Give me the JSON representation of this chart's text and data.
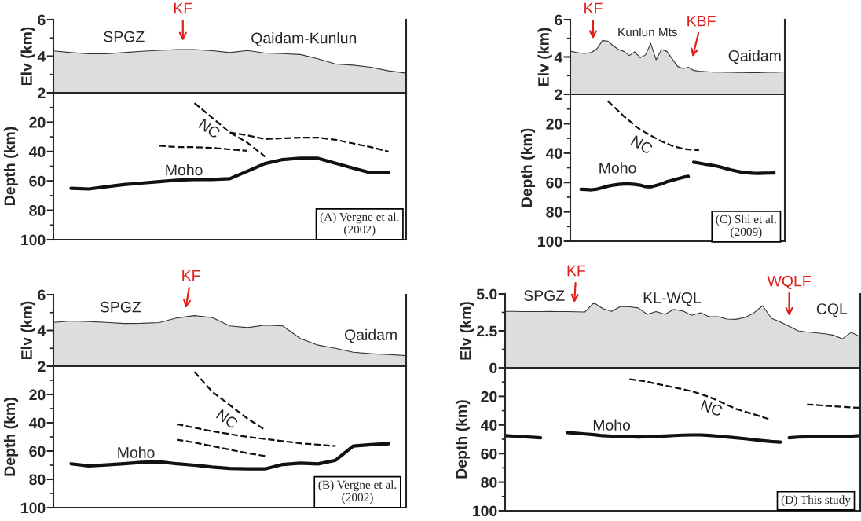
{
  "chart_data": [
    {
      "type": "area",
      "ylabel": "Elv (km)",
      "tick_labels": "y",
      "ylim": [
        2,
        6
      ],
      "yticks": [
        2,
        {
          "value": 3,
          "label": null
        },
        4,
        {
          "value": 5,
          "label": null
        },
        6
      ],
      "annotations": [
        "SPGZ",
        "KF",
        "Qaidam-Kunlun"
      ],
      "categories": [
        null,
        null,
        null,
        null,
        null,
        null,
        null,
        null,
        null,
        null,
        null,
        null,
        null,
        null,
        null,
        null,
        null,
        null,
        null,
        null,
        null
      ],
      "series": [
        {
          "type": "area",
          "color": "#dcdedd",
          "values": [
            4.29,
            4.2,
            4.13,
            4.13,
            4.2,
            4.27,
            4.32,
            4.36,
            4.36,
            4.3,
            4.2,
            4.31,
            4.17,
            4.14,
            4.09,
            3.86,
            3.57,
            3.51,
            3.4,
            3.2,
            3.07
          ]
        }
      ]
    },
    {
      "type": "line",
      "ylabel": "Depth (km)",
      "tick_labels": "y",
      "ylim": [
        100,
        0
      ],
      "yticks": [
        {
          "value": 10,
          "label": null
        },
        20,
        {
          "value": 30,
          "label": null
        },
        40,
        {
          "value": 50,
          "label": null
        },
        60,
        {
          "value": 70,
          "label": null
        },
        80,
        {
          "value": 90,
          "label": null
        },
        100
      ],
      "annotations": [
        "NC",
        "Moho",
        "(A) Vergne et al. (2002)"
      ],
      "categories": [
        null,
        null,
        null,
        null,
        null,
        null,
        null,
        null,
        null,
        null,
        null,
        null,
        null,
        null,
        null,
        null,
        null,
        null,
        null,
        null,
        null
      ],
      "series": [
        {
          "type": "line",
          "line_style": "solid",
          "color": "#111111",
          "values": [
            null,
            65,
            65.5,
            64,
            62.5,
            61.5,
            60.5,
            59.5,
            59,
            59,
            58.5,
            53.4,
            48.2,
            45.5,
            44.5,
            44.6,
            48,
            51.3,
            54.5,
            54.5,
            null
          ]
        },
        {
          "type": "line",
          "line_style": "dashed",
          "color": "#111111",
          "values": [
            null,
            null,
            null,
            null,
            null,
            null,
            null,
            null,
            7,
            17,
            27,
            34,
            43.5,
            null,
            null,
            null,
            null,
            null,
            null,
            null,
            null
          ]
        },
        {
          "type": "line",
          "line_style": "dashed",
          "color": "#111111",
          "values": [
            null,
            null,
            null,
            null,
            null,
            null,
            null,
            null,
            null,
            null,
            27,
            29,
            31.5,
            31,
            30.5,
            30.5,
            32,
            34.5,
            37,
            40,
            null
          ]
        },
        {
          "type": "line",
          "line_style": "dashed",
          "color": "#111111",
          "values": [
            null,
            null,
            null,
            null,
            null,
            null,
            36,
            37,
            37,
            37.5,
            38.5,
            39.5,
            null,
            null,
            null,
            null,
            null,
            null,
            null,
            null,
            null
          ]
        }
      ]
    },
    {
      "type": "area",
      "ylabel": "Elv (km)",
      "tick_labels": "y",
      "ylim": [
        2,
        6
      ],
      "yticks": [
        2,
        {
          "value": 3,
          "label": null
        },
        4,
        {
          "value": 5,
          "label": null
        },
        6
      ],
      "annotations": [
        "KF",
        "Kunlun Mts",
        "KBF",
        "Qaidam"
      ],
      "categories": [
        null,
        null,
        null,
        null,
        null,
        null,
        null,
        null,
        null,
        null,
        null,
        null,
        null,
        null,
        null,
        null,
        null,
        null,
        null,
        null,
        null,
        null,
        null,
        null,
        null,
        null,
        null,
        null,
        null,
        null,
        null,
        null,
        null,
        null,
        null,
        null,
        null,
        null,
        null,
        null,
        null
      ],
      "series": [
        {
          "type": "area",
          "color": "#dcdedd",
          "values": [
            4.31,
            4.25,
            4.2,
            4.2,
            4.25,
            4.45,
            4.88,
            4.85,
            4.6,
            4.4,
            4.3,
            4.08,
            4.28,
            3.96,
            4.1,
            4.73,
            3.85,
            4.4,
            4.3,
            3.9,
            3.5,
            3.38,
            3.45,
            3.28,
            3.24,
            3.22,
            3.2,
            3.19,
            3.19,
            3.18,
            3.18,
            3.17,
            3.17,
            3.16,
            3.16,
            3.16,
            3.17,
            3.18,
            3.18,
            3.19,
            3.2
          ]
        }
      ]
    },
    {
      "type": "line",
      "ylabel": "Depth (km)",
      "tick_labels": "y",
      "ylim": [
        100,
        0
      ],
      "yticks": [
        {
          "value": 10,
          "label": null
        },
        20,
        {
          "value": 30,
          "label": null
        },
        40,
        {
          "value": 50,
          "label": null
        },
        60,
        {
          "value": 70,
          "label": null
        },
        80,
        {
          "value": 90,
          "label": null
        },
        100
      ],
      "annotations": [
        "NC",
        "Moho",
        "(C) Shi et al. (2009)"
      ],
      "categories": [
        null,
        null,
        null,
        null,
        null,
        null,
        null,
        null,
        null,
        null,
        null,
        null,
        null,
        null,
        null,
        null,
        null,
        null,
        null,
        null,
        null,
        null,
        null,
        null,
        null,
        null,
        null,
        null,
        null,
        null,
        null,
        null,
        null,
        null,
        null,
        null,
        null,
        null,
        null,
        null,
        null
      ],
      "series": [
        {
          "type": "line",
          "line_style": "dashed",
          "color": "#111111",
          "values": [
            null,
            null,
            null,
            null,
            null,
            null,
            null,
            4.5,
            8,
            11.5,
            15,
            18,
            21,
            24,
            26,
            28,
            30,
            32,
            33.5,
            35,
            36,
            37,
            37.5,
            37.8,
            38,
            null,
            null,
            null,
            null,
            null,
            null,
            null,
            null,
            null,
            null,
            null,
            null,
            null,
            null,
            null,
            null
          ]
        },
        {
          "type": "line",
          "line_style": "solid",
          "color": "#111111",
          "values": [
            null,
            null,
            64.6,
            64.8,
            65,
            64.5,
            63.5,
            62.5,
            61.8,
            61.3,
            61,
            61,
            61.3,
            61.8,
            62.8,
            63,
            62,
            61,
            59.5,
            58.5,
            57.5,
            56.5,
            55.8,
            null,
            null,
            null,
            null,
            null,
            null,
            null,
            null,
            null,
            null,
            null,
            null,
            null,
            null,
            null,
            null,
            null,
            null
          ]
        },
        {
          "type": "line",
          "line_style": "solid",
          "color": "#111111",
          "values": [
            null,
            null,
            null,
            null,
            null,
            null,
            null,
            null,
            null,
            null,
            null,
            null,
            null,
            null,
            null,
            null,
            null,
            null,
            null,
            null,
            null,
            null,
            null,
            46.2,
            46.8,
            47.5,
            48,
            48.7,
            49.5,
            50.5,
            51.5,
            52.3,
            53,
            53.4,
            53.7,
            53.8,
            53.7,
            53.6,
            53.5,
            null,
            null
          ]
        }
      ]
    },
    {
      "type": "area",
      "ylabel": "Elv (km)",
      "tick_labels": "y",
      "ylim": [
        2,
        6
      ],
      "yticks": [
        2,
        {
          "value": 3,
          "label": null
        },
        4,
        {
          "value": 5,
          "label": null
        },
        6
      ],
      "annotations": [
        "SPGZ",
        "KF",
        "Qaidam"
      ],
      "categories": [
        null,
        null,
        null,
        null,
        null,
        null,
        null,
        null,
        null,
        null,
        null,
        null,
        null,
        null,
        null,
        null,
        null,
        null,
        null,
        null,
        null
      ],
      "series": [
        {
          "type": "area",
          "color": "#dcdedd",
          "values": [
            4.45,
            4.53,
            4.5,
            4.45,
            4.39,
            4.4,
            4.44,
            4.7,
            4.83,
            4.72,
            4.25,
            4.16,
            4.3,
            4.25,
            3.55,
            3.18,
            3.0,
            2.78,
            2.7,
            2.65,
            2.59
          ]
        }
      ]
    },
    {
      "type": "line",
      "ylabel": "Depth (km)",
      "tick_labels": "y",
      "ylim": [
        100,
        0
      ],
      "yticks": [
        {
          "value": 10,
          "label": null
        },
        20,
        {
          "value": 30,
          "label": null
        },
        40,
        {
          "value": 50,
          "label": null
        },
        60,
        {
          "value": 70,
          "label": null
        },
        80,
        {
          "value": 90,
          "label": null
        },
        100
      ],
      "annotations": [
        "NC",
        "Moho",
        "(B) Vergne et al. (2002)"
      ],
      "categories": [
        null,
        null,
        null,
        null,
        null,
        null,
        null,
        null,
        null,
        null,
        null,
        null,
        null,
        null,
        null,
        null,
        null,
        null,
        null,
        null,
        null
      ],
      "series": [
        {
          "type": "line",
          "line_style": "solid",
          "color": "#111111",
          "values": [
            null,
            69,
            70.5,
            69.8,
            69,
            68,
            67.6,
            69,
            70,
            71.3,
            72.3,
            72.6,
            72.6,
            69.5,
            68.5,
            69.1,
            66.5,
            56.5,
            55.5,
            54.8,
            null
          ]
        },
        {
          "type": "line",
          "line_style": "dashed",
          "color": "#111111",
          "values": [
            null,
            null,
            null,
            null,
            null,
            null,
            null,
            null,
            4,
            18,
            27.5,
            37,
            45,
            null,
            null,
            null,
            null,
            null,
            null,
            null,
            null
          ]
        },
        {
          "type": "line",
          "line_style": "dashed",
          "color": "#111111",
          "values": [
            null,
            null,
            null,
            null,
            null,
            null,
            null,
            41,
            43.5,
            46,
            48,
            50,
            51.5,
            53,
            54.5,
            55.5,
            56.5,
            null,
            null,
            null,
            null
          ]
        },
        {
          "type": "line",
          "line_style": "dashed",
          "color": "#111111",
          "values": [
            null,
            null,
            null,
            null,
            null,
            null,
            null,
            52,
            54,
            56.5,
            59,
            61.5,
            63.5,
            null,
            null,
            null,
            null,
            null,
            null,
            null,
            null
          ]
        }
      ]
    },
    {
      "type": "area",
      "ylabel": "Elv (km)",
      "tick_labels": "y",
      "ylim": [
        0,
        5
      ],
      "yticks": [
        0,
        {
          "value": 1.25,
          "label": null
        },
        2.5,
        {
          "value": 3.75,
          "label": null
        },
        {
          "value": 5,
          "label": "5.0"
        }
      ],
      "annotations": [
        "SPGZ",
        "KF",
        "KL-WQL",
        "WQLF",
        "CQL"
      ],
      "categories": [
        null,
        null,
        null,
        null,
        null,
        null,
        null,
        null,
        null,
        null,
        null,
        null,
        null,
        null,
        null,
        null,
        null,
        null,
        null,
        null,
        null,
        null,
        null,
        null,
        null,
        null,
        null,
        null,
        null,
        null,
        null,
        null,
        null,
        null,
        null,
        null,
        null,
        null,
        null,
        null,
        null
      ],
      "series": [
        {
          "type": "area",
          "color": "#dcdedd",
          "values": [
            3.82,
            3.82,
            3.8,
            3.8,
            3.8,
            3.81,
            3.8,
            3.8,
            3.79,
            3.78,
            4.4,
            4.0,
            3.82,
            4.15,
            4.12,
            4.05,
            3.62,
            3.8,
            3.62,
            3.95,
            3.85,
            3.55,
            3.72,
            3.45,
            3.46,
            3.3,
            3.28,
            3.4,
            3.7,
            4.2,
            3.35,
            3.1,
            2.8,
            2.5,
            2.42,
            2.37,
            2.3,
            2.2,
            1.96,
            2.4,
            2.1
          ]
        }
      ]
    },
    {
      "type": "line",
      "ylabel": "Depth (km)",
      "tick_labels": "y",
      "ylim": [
        100,
        0
      ],
      "yticks": [
        {
          "value": 10,
          "label": null
        },
        20,
        {
          "value": 30,
          "label": null
        },
        40,
        {
          "value": 50,
          "label": null
        },
        60,
        {
          "value": 70,
          "label": null
        },
        80,
        {
          "value": 90,
          "label": null
        },
        100
      ],
      "annotations": [
        "NC",
        "Moho",
        "(D) This study"
      ],
      "categories": [
        null,
        null,
        null,
        null,
        null,
        null,
        null,
        null,
        null,
        null,
        null,
        null,
        null,
        null,
        null,
        null,
        null,
        null,
        null,
        null,
        null,
        null,
        null,
        null,
        null,
        null,
        null,
        null,
        null,
        null,
        null,
        null,
        null,
        null,
        null,
        null,
        null,
        null,
        null,
        null,
        null
      ],
      "series": [
        {
          "type": "line",
          "line_style": "solid",
          "color": "#111111",
          "values": [
            47.5,
            47.8,
            48.2,
            48.6,
            49,
            null,
            null,
            null,
            null,
            null,
            null,
            null,
            null,
            null,
            null,
            null,
            null,
            null,
            null,
            null,
            null,
            null,
            null,
            null,
            null,
            null,
            null,
            null,
            null,
            null,
            null,
            null,
            null,
            null,
            null,
            null,
            null,
            null,
            null,
            null,
            null
          ]
        },
        {
          "type": "line",
          "line_style": "solid",
          "color": "#111111",
          "values": [
            null,
            null,
            null,
            null,
            null,
            null,
            null,
            45.3,
            45.8,
            46.3,
            46.8,
            47.5,
            47.8,
            48,
            48.2,
            48.4,
            48.2,
            48,
            47.7,
            47.4,
            47.1,
            47,
            47,
            47.3,
            47.8,
            48.4,
            49,
            49.6,
            50.3,
            51,
            51.6,
            52,
            null,
            null,
            null,
            null,
            null,
            null,
            null,
            null,
            null
          ]
        },
        {
          "type": "line",
          "line_style": "solid",
          "color": "#111111",
          "values": [
            null,
            null,
            null,
            null,
            null,
            null,
            null,
            null,
            null,
            null,
            null,
            null,
            null,
            null,
            null,
            null,
            null,
            null,
            null,
            null,
            null,
            null,
            null,
            null,
            null,
            null,
            null,
            null,
            null,
            null,
            null,
            null,
            49,
            48.5,
            48.3,
            48.3,
            48.3,
            48.2,
            48,
            47.8,
            47.5
          ]
        },
        {
          "type": "line",
          "line_style": "dashed",
          "color": "#111111",
          "values": [
            null,
            null,
            null,
            null,
            null,
            null,
            null,
            null,
            null,
            null,
            null,
            null,
            null,
            null,
            8,
            8.8,
            9.7,
            11.3,
            12.4,
            13.7,
            15,
            16.4,
            18.3,
            20.5,
            23,
            26,
            28.8,
            30.7,
            32.5,
            34.5,
            36.5,
            null,
            null,
            null,
            null,
            null,
            null,
            null,
            null,
            null,
            null
          ]
        },
        {
          "type": "line",
          "line_style": "dashed",
          "color": "#111111",
          "values": [
            null,
            null,
            null,
            null,
            null,
            null,
            null,
            null,
            null,
            null,
            null,
            null,
            null,
            null,
            null,
            null,
            null,
            null,
            null,
            null,
            null,
            null,
            null,
            null,
            null,
            null,
            null,
            null,
            null,
            null,
            null,
            null,
            null,
            null,
            25.7,
            26,
            26.5,
            27,
            27.3,
            27.7,
            28
          ]
        }
      ]
    }
  ]
}
